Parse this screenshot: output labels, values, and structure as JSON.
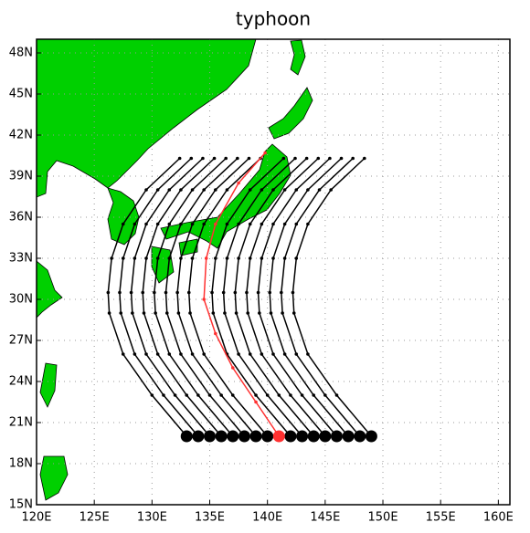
{
  "chart_data": {
    "type": "track-map",
    "title": "typhoon",
    "xlim": [
      120,
      161
    ],
    "ylim": [
      15,
      49
    ],
    "xticks": [
      {
        "value": 120,
        "label": "120E"
      },
      {
        "value": 125,
        "label": "125E"
      },
      {
        "value": 130,
        "label": "130E"
      },
      {
        "value": 135,
        "label": "135E"
      },
      {
        "value": 140,
        "label": "140E"
      },
      {
        "value": 145,
        "label": "145E"
      },
      {
        "value": 150,
        "label": "150E"
      },
      {
        "value": 155,
        "label": "155E"
      },
      {
        "value": 160,
        "label": "160E"
      }
    ],
    "yticks": [
      {
        "value": 15,
        "label": "15N"
      },
      {
        "value": 18,
        "label": "18N"
      },
      {
        "value": 21,
        "label": "21N"
      },
      {
        "value": 24,
        "label": "24N"
      },
      {
        "value": 27,
        "label": "27N"
      },
      {
        "value": 30,
        "label": "30N"
      },
      {
        "value": 33,
        "label": "33N"
      },
      {
        "value": 36,
        "label": "36N"
      },
      {
        "value": 39,
        "label": "39N"
      },
      {
        "value": 42,
        "label": "42N"
      },
      {
        "value": 45,
        "label": "45N"
      },
      {
        "value": 48,
        "label": "48N"
      }
    ],
    "grid": true,
    "land_color": "#00d000",
    "series": [
      {
        "color": "#000000",
        "lon": [
          133,
          130,
          127.5,
          126.3,
          126.2,
          126.5,
          127.5,
          129.5,
          132.4
        ],
        "lat": [
          20,
          23,
          26,
          29,
          30.5,
          33,
          35.5,
          38,
          40.3
        ]
      },
      {
        "color": "#000000",
        "lon": [
          134,
          131,
          128.5,
          127.3,
          127.2,
          127.5,
          128.5,
          130.5,
          133.4
        ],
        "lat": [
          20,
          23,
          26,
          29,
          30.5,
          33,
          35.5,
          38,
          40.3
        ]
      },
      {
        "color": "#000000",
        "lon": [
          135,
          132,
          129.5,
          128.3,
          128.2,
          128.5,
          129.5,
          131.5,
          134.4
        ],
        "lat": [
          20,
          23,
          26,
          29,
          30.5,
          33,
          35.5,
          38,
          40.3
        ]
      },
      {
        "color": "#000000",
        "lon": [
          136,
          133,
          130.5,
          129.3,
          129.2,
          129.5,
          130.5,
          132.5,
          135.4
        ],
        "lat": [
          20,
          23,
          26,
          29,
          30.5,
          33,
          35.5,
          38,
          40.3
        ]
      },
      {
        "color": "#000000",
        "lon": [
          137,
          134,
          131.5,
          130.3,
          130.2,
          130.5,
          131.5,
          133.5,
          136.4
        ],
        "lat": [
          20,
          23,
          26,
          29,
          30.5,
          33,
          35.5,
          38,
          40.3
        ]
      },
      {
        "color": "#000000",
        "lon": [
          138,
          135,
          132.5,
          131.3,
          131.2,
          131.5,
          132.5,
          134.5,
          137.4
        ],
        "lat": [
          20,
          23,
          26,
          29,
          30.5,
          33,
          35.5,
          38,
          40.3
        ]
      },
      {
        "color": "#000000",
        "lon": [
          139,
          136,
          133.5,
          132.3,
          132.2,
          132.5,
          133.5,
          135.5,
          138.4
        ],
        "lat": [
          20,
          23,
          26,
          29,
          30.5,
          33,
          35.5,
          38,
          40.3
        ]
      },
      {
        "color": "#000000",
        "lon": [
          140,
          137,
          134.5,
          133.3,
          133.2,
          133.5,
          134.5,
          136.5,
          139.4
        ],
        "lat": [
          20,
          23,
          26,
          29,
          30.5,
          33,
          35.5,
          38,
          40.3
        ]
      },
      {
        "color": "#000000",
        "lon": [
          142,
          139,
          136.5,
          135.3,
          135.2,
          135.5,
          136.5,
          138.5,
          141.4
        ],
        "lat": [
          20,
          23,
          26,
          29,
          30.5,
          33,
          35.5,
          38,
          40.3
        ]
      },
      {
        "color": "#000000",
        "lon": [
          143,
          140,
          137.5,
          136.3,
          136.2,
          136.5,
          137.5,
          139.5,
          142.4
        ],
        "lat": [
          20,
          23,
          26,
          29,
          30.5,
          33,
          35.5,
          38,
          40.3
        ]
      },
      {
        "color": "#000000",
        "lon": [
          144,
          141,
          138.5,
          137.3,
          137.2,
          137.5,
          138.5,
          140.5,
          143.4
        ],
        "lat": [
          20,
          23,
          26,
          29,
          30.5,
          33,
          35.5,
          38,
          40.3
        ]
      },
      {
        "color": "#000000",
        "lon": [
          145,
          142,
          139.5,
          138.3,
          138.2,
          138.5,
          139.5,
          141.5,
          144.4
        ],
        "lat": [
          20,
          23,
          26,
          29,
          30.5,
          33,
          35.5,
          38,
          40.3
        ]
      },
      {
        "color": "#000000",
        "lon": [
          146,
          143,
          140.5,
          139.3,
          139.2,
          139.5,
          140.5,
          142.5,
          145.4
        ],
        "lat": [
          20,
          23,
          26,
          29,
          30.5,
          33,
          35.5,
          38,
          40.3
        ]
      },
      {
        "color": "#000000",
        "lon": [
          147,
          144,
          141.5,
          140.3,
          140.2,
          140.5,
          141.5,
          143.5,
          146.4
        ],
        "lat": [
          20,
          23,
          26,
          29,
          30.5,
          33,
          35.5,
          38,
          40.3
        ]
      },
      {
        "color": "#000000",
        "lon": [
          148,
          145,
          142.5,
          141.3,
          141.2,
          141.5,
          142.5,
          144.5,
          147.4
        ],
        "lat": [
          20,
          23,
          26,
          29,
          30.5,
          33,
          35.5,
          38,
          40.3
        ]
      },
      {
        "color": "#000000",
        "lon": [
          149,
          146,
          143.5,
          142.3,
          142.2,
          142.5,
          143.5,
          145.5,
          148.4
        ],
        "lat": [
          20,
          23,
          26,
          29,
          30.5,
          33,
          35.5,
          38,
          40.3
        ]
      },
      {
        "color": "#ff3030",
        "lon": [
          141,
          139,
          137,
          135.5,
          134.5,
          134.7,
          135.5,
          137.5,
          139.8
        ],
        "lat": [
          20,
          22.5,
          25,
          27.5,
          30,
          33,
          35.5,
          38.5,
          40.7
        ]
      }
    ]
  }
}
